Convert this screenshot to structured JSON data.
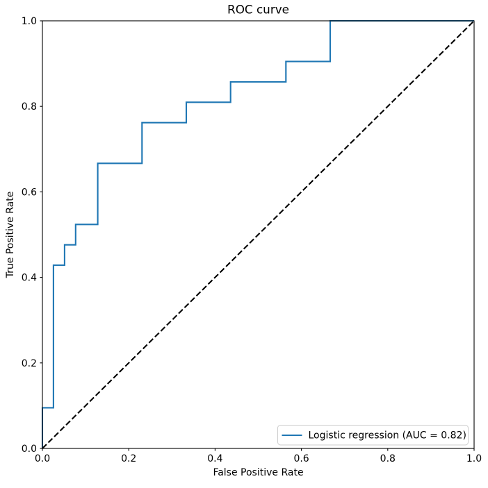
{
  "chart_data": {
    "type": "line",
    "title": "ROC curve",
    "xlabel": "False Positive Rate",
    "ylabel": "True Positive Rate",
    "xlim": [
      0.0,
      1.0
    ],
    "ylim": [
      0.0,
      1.0
    ],
    "x_ticks": [
      "0.0",
      "0.2",
      "0.4",
      "0.6",
      "0.8",
      "1.0"
    ],
    "y_ticks": [
      "0.0",
      "0.2",
      "0.4",
      "0.6",
      "0.8",
      "1.0"
    ],
    "grid": false,
    "legend": {
      "position": "lower right",
      "entries": [
        {
          "label": "Logistic regression (AUC = 0.82)",
          "color": "#1f77b4",
          "line_style": "solid"
        }
      ]
    },
    "series": [
      {
        "name": "Logistic regression",
        "auc": 0.82,
        "style": "solid-step",
        "color": "#1f77b4",
        "points": [
          [
            0.0,
            0.0
          ],
          [
            0.0,
            0.0952
          ],
          [
            0.0256,
            0.0952
          ],
          [
            0.0256,
            0.4286
          ],
          [
            0.0513,
            0.4286
          ],
          [
            0.0513,
            0.4762
          ],
          [
            0.0769,
            0.4762
          ],
          [
            0.0769,
            0.5238
          ],
          [
            0.1282,
            0.5238
          ],
          [
            0.1282,
            0.6667
          ],
          [
            0.2308,
            0.6667
          ],
          [
            0.2308,
            0.7619
          ],
          [
            0.3333,
            0.7619
          ],
          [
            0.3333,
            0.8095
          ],
          [
            0.4359,
            0.8095
          ],
          [
            0.4359,
            0.8571
          ],
          [
            0.5641,
            0.8571
          ],
          [
            0.5641,
            0.9048
          ],
          [
            0.6667,
            0.9048
          ],
          [
            0.6667,
            1.0
          ],
          [
            1.0,
            1.0
          ]
        ]
      },
      {
        "name": "Chance diagonal",
        "style": "dashed",
        "color": "#000000",
        "points": [
          [
            0.0,
            0.0
          ],
          [
            1.0,
            1.0
          ]
        ]
      }
    ],
    "colors": {
      "background": "#ffffff",
      "axes_border": "#000000",
      "legend_border": "#cccccc",
      "legend_background": "#ffffff"
    }
  }
}
